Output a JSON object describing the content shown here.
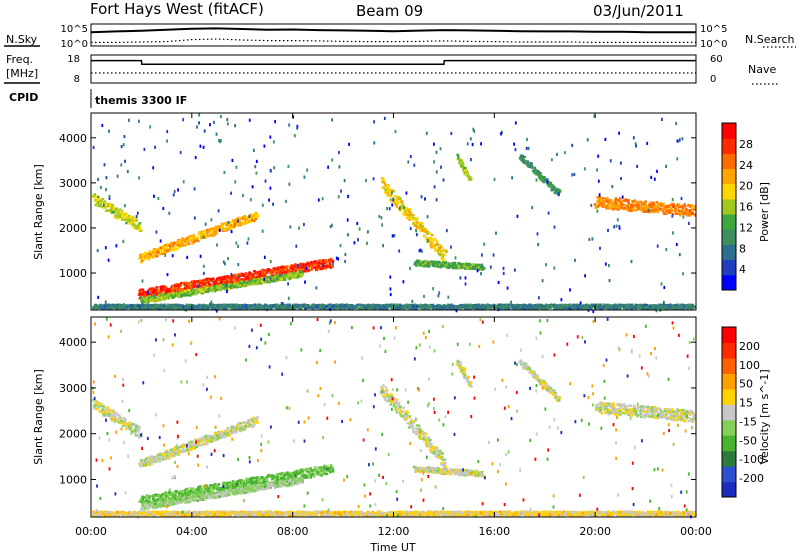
{
  "header": {
    "radar": "Fort Hays West (fitACF)",
    "beam": "Beam 09",
    "date": "03/Jun/2011"
  },
  "noise_panel": {
    "left_label": "N.Sky",
    "left_ticks": [
      "10^5",
      "10^0"
    ],
    "right_label": "N.Search",
    "right_ticks": [
      "10^5",
      "10^0"
    ]
  },
  "freq_panel": {
    "left_label_1": "Freq.",
    "left_label_2": "[MHz]",
    "left_ticks": [
      "18",
      "8"
    ],
    "right_label": "Nave",
    "right_ticks": [
      "60",
      "0"
    ]
  },
  "cpid_panel": {
    "label": "CPID",
    "text": "themis 3300 IF"
  },
  "colors": {
    "power_scale": [
      "#0000ff",
      "#1f3fbf",
      "#2e6f8f",
      "#3c8f5f",
      "#3fa73f",
      "#a0c81e",
      "#ffd700",
      "#ffa500",
      "#ff6a00",
      "#ff2a00",
      "#ff0000"
    ],
    "velocity_scale": [
      "#1a2dbf",
      "#2e4fd0",
      "#2e7a3a",
      "#46b52d",
      "#86d05a",
      "#c8c8c8",
      "#ffd200",
      "#ffa000",
      "#ff6000",
      "#ff2a00",
      "#ff0000"
    ],
    "noise_line": "#000000"
  },
  "chart_data": [
    {
      "type": "line",
      "panel": "noise",
      "ylabel": "N.Sky",
      "y_scale": "log",
      "ylim": [
        1,
        100000
      ],
      "x": [
        "00:00",
        "01:00",
        "02:00",
        "03:00",
        "04:00",
        "05:00",
        "06:00",
        "07:00",
        "08:00",
        "09:00",
        "10:00",
        "11:00",
        "12:00",
        "13:00",
        "14:00",
        "15:00",
        "16:00",
        "17:00",
        "18:00",
        "19:00",
        "20:00",
        "21:00",
        "22:00",
        "23:00",
        "24:00"
      ],
      "series": [
        {
          "name": "N.Sky",
          "values": [
            3000,
            5000,
            8000,
            15000,
            30000,
            40000,
            25000,
            15000,
            18000,
            12000,
            10000,
            8000,
            6000,
            9000,
            12000,
            10000,
            8000,
            6000,
            5000,
            5000,
            4000,
            4000,
            3000,
            3000,
            3000
          ]
        },
        {
          "name": "N.Search",
          "values": [
            3,
            3,
            4,
            5,
            20,
            30,
            15,
            10,
            10,
            8,
            6,
            5,
            5,
            6,
            8,
            6,
            5,
            4,
            4,
            4,
            3,
            3,
            3,
            3,
            3
          ]
        }
      ]
    },
    {
      "type": "line",
      "panel": "frequency",
      "ylabel": "Freq. [MHz]",
      "ylim": [
        8,
        18
      ],
      "y2label": "Nave",
      "y2lim": [
        0,
        60
      ],
      "x": [
        "00:00",
        "02:00",
        "02:01",
        "14:00",
        "14:01",
        "24:00"
      ],
      "series": [
        {
          "name": "Freq.",
          "values": [
            16.5,
            16.5,
            15.0,
            15.0,
            16.5,
            16.5
          ]
        },
        {
          "name": "Nave",
          "values": [
            20,
            20,
            20,
            20,
            20,
            20
          ]
        }
      ]
    },
    {
      "type": "heatmap",
      "panel": "power",
      "ylabel": "Slant Range [km]",
      "colorbar_label": "Power [dB]",
      "colorbar_ticks": [
        "4",
        "8",
        "12",
        "16",
        "20",
        "24",
        "28"
      ],
      "clim": [
        0,
        30
      ],
      "ylim": [
        180,
        4550
      ],
      "yticks": [
        "1000",
        "2000",
        "3000",
        "4000"
      ],
      "xlim": [
        0,
        24
      ],
      "features": [
        {
          "t0": 0.0,
          "t1": 1.9,
          "r0": 2700,
          "r1": 2050,
          "width": 220,
          "value": 16
        },
        {
          "t0": 1.9,
          "t1": 6.5,
          "r0": 1350,
          "r1": 2300,
          "width": 180,
          "value": 20
        },
        {
          "t0": 1.9,
          "t1": 9.5,
          "r0": 550,
          "r1": 1250,
          "width": 200,
          "value": 26
        },
        {
          "t0": 2.0,
          "t1": 8.3,
          "r0": 420,
          "r1": 1000,
          "width": 120,
          "value": 14
        },
        {
          "t0": 11.5,
          "t1": 14.0,
          "r0": 3000,
          "r1": 1400,
          "width": 260,
          "value": 18
        },
        {
          "t0": 12.8,
          "t1": 15.5,
          "r0": 1250,
          "r1": 1150,
          "width": 120,
          "value": 12
        },
        {
          "t0": 14.5,
          "t1": 15.0,
          "r0": 3600,
          "r1": 3100,
          "width": 120,
          "value": 14
        },
        {
          "t0": 17.0,
          "t1": 18.5,
          "r0": 3600,
          "r1": 2800,
          "width": 120,
          "value": 10
        },
        {
          "t0": 20.0,
          "t1": 24.0,
          "r0": 2600,
          "r1": 2400,
          "width": 250,
          "value": 22
        },
        {
          "t0": 0.0,
          "t1": 24.0,
          "r0": 280,
          "r1": 280,
          "width": 90,
          "value": 8
        }
      ]
    },
    {
      "type": "heatmap",
      "panel": "velocity",
      "ylabel": "Slant Range [km]",
      "colorbar_label": "Velocity [m s^-1]",
      "colorbar_ticks": [
        "-200",
        "-100",
        "-50",
        "-15",
        "15",
        "50",
        "100",
        "200"
      ],
      "clim": [
        -250,
        250
      ],
      "ylim": [
        180,
        4550
      ],
      "yticks": [
        "1000",
        "2000",
        "3000",
        "4000"
      ],
      "xlim": [
        0,
        24
      ],
      "features": [
        {
          "t0": 0.0,
          "t1": 1.9,
          "r0": 2700,
          "r1": 2050,
          "width": 220,
          "value": 0
        },
        {
          "t0": 1.9,
          "t1": 6.5,
          "r0": 1350,
          "r1": 2300,
          "width": 180,
          "value": 0
        },
        {
          "t0": 1.9,
          "t1": 9.5,
          "r0": 550,
          "r1": 1250,
          "width": 200,
          "value": -70
        },
        {
          "t0": 2.0,
          "t1": 8.3,
          "r0": 420,
          "r1": 1000,
          "width": 120,
          "value": -30
        },
        {
          "t0": 11.5,
          "t1": 14.0,
          "r0": 3000,
          "r1": 1400,
          "width": 260,
          "value": 0
        },
        {
          "t0": 12.8,
          "t1": 15.5,
          "r0": 1250,
          "r1": 1150,
          "width": 120,
          "value": 0
        },
        {
          "t0": 14.5,
          "t1": 15.0,
          "r0": 3600,
          "r1": 3100,
          "width": 120,
          "value": 0
        },
        {
          "t0": 17.0,
          "t1": 18.5,
          "r0": 3600,
          "r1": 2800,
          "width": 120,
          "value": 0
        },
        {
          "t0": 20.0,
          "t1": 24.0,
          "r0": 2600,
          "r1": 2400,
          "width": 250,
          "value": 0
        },
        {
          "t0": 0.0,
          "t1": 24.0,
          "r0": 280,
          "r1": 280,
          "width": 90,
          "value": 30
        }
      ]
    }
  ],
  "x_axis": {
    "label": "Time UT",
    "ticks": [
      "00:00",
      "04:00",
      "08:00",
      "12:00",
      "16:00",
      "20:00",
      "00:00"
    ]
  }
}
